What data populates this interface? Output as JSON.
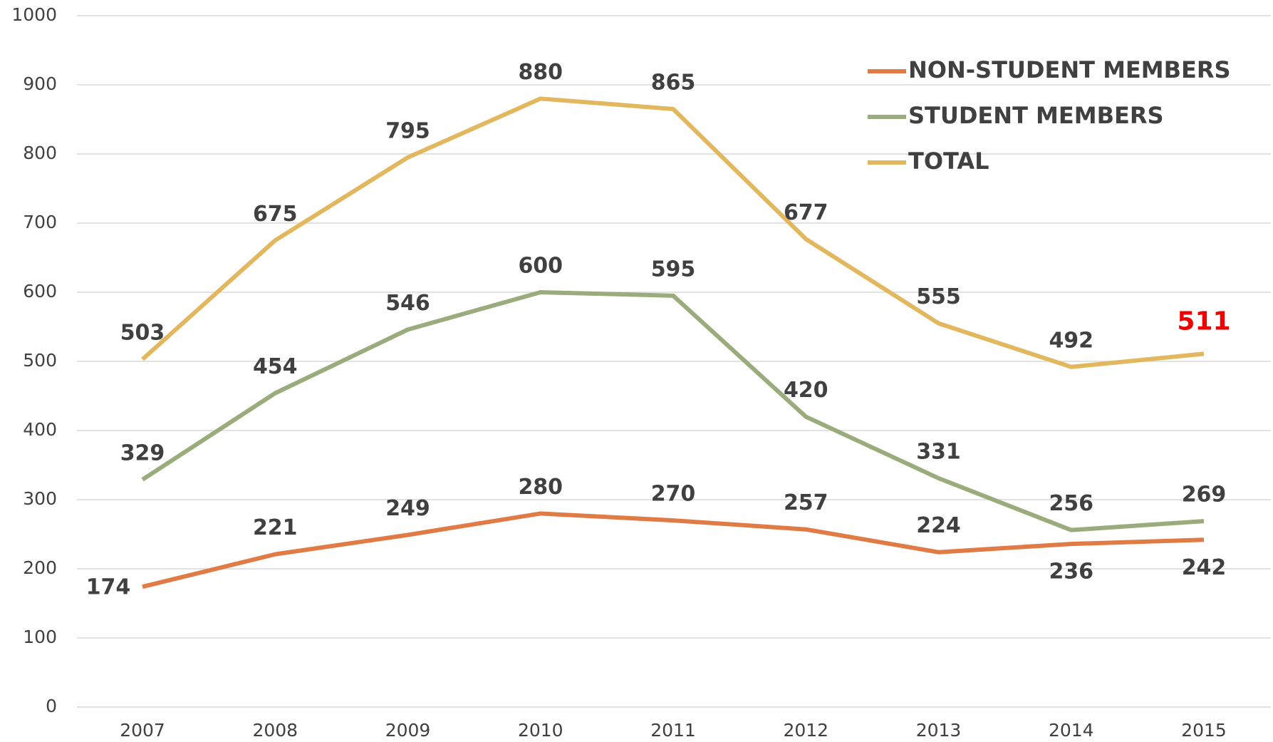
{
  "chart_data": {
    "type": "line",
    "categories": [
      "2007",
      "2008",
      "2009",
      "2010",
      "2011",
      "2012",
      "2013",
      "2014",
      "2015"
    ],
    "series": [
      {
        "name": "NON-STUDENT MEMBERS",
        "color": "#e07b45",
        "values": [
          174,
          221,
          249,
          280,
          270,
          257,
          224,
          236,
          242
        ]
      },
      {
        "name": "STUDENT MEMBERS",
        "color": "#9aab7c",
        "values": [
          329,
          454,
          546,
          600,
          595,
          420,
          331,
          256,
          269
        ]
      },
      {
        "name": "TOTAL",
        "color": "#e2b75e",
        "values": [
          503,
          675,
          795,
          880,
          865,
          677,
          555,
          492,
          511
        ]
      }
    ],
    "ylim": [
      0,
      1000
    ],
    "yticks": [
      0,
      100,
      200,
      300,
      400,
      500,
      600,
      700,
      800,
      900,
      1000
    ],
    "grid": true,
    "legend": "top-right",
    "highlight": {
      "series": 2,
      "index": 8,
      "color": "#ee0000"
    }
  }
}
